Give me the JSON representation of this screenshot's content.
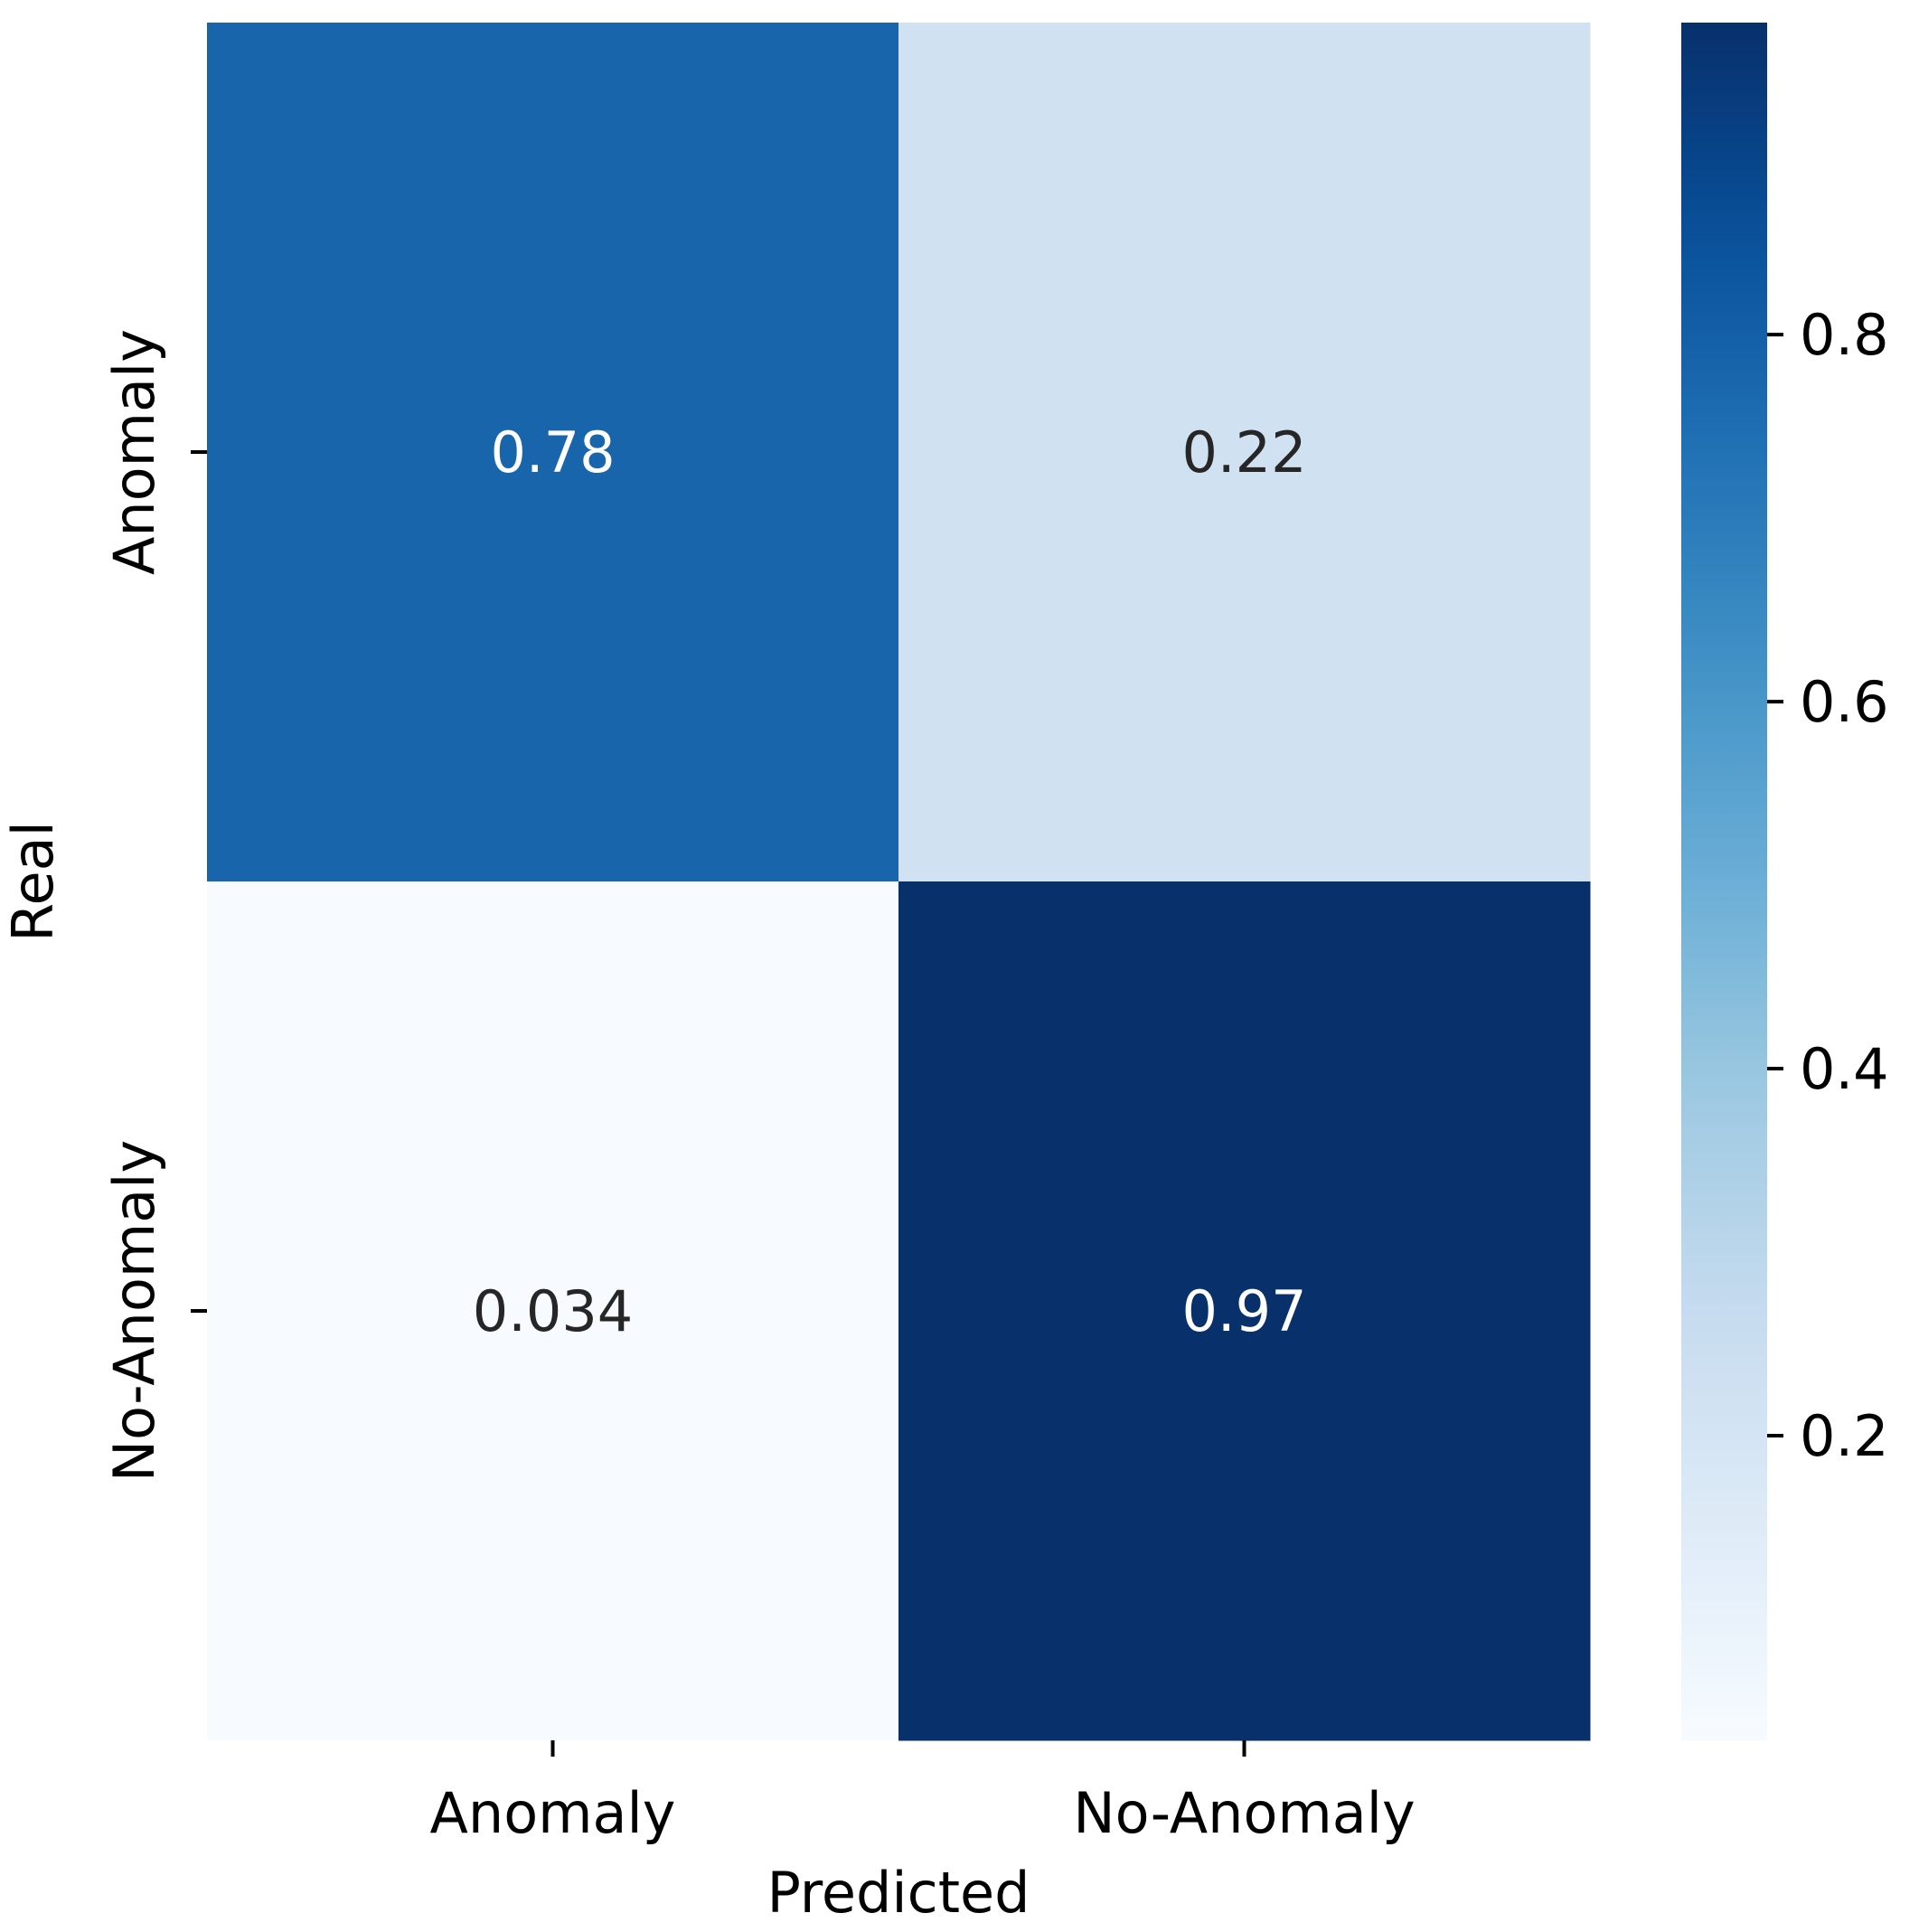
{
  "chart_data": {
    "type": "heatmap",
    "title": "",
    "xlabel": "Predicted",
    "ylabel": "Real",
    "x_categories": [
      "Anomaly",
      "No-Anomaly"
    ],
    "y_categories": [
      "Anomaly",
      "No-Anomaly"
    ],
    "values": [
      [
        0.78,
        0.22
      ],
      [
        0.034,
        0.97
      ]
    ],
    "cell_labels": [
      [
        "0.78",
        "0.22"
      ],
      [
        "0.034",
        "0.97"
      ]
    ],
    "colormap": "Blues",
    "colorbar": {
      "range": [
        0.034,
        0.97
      ],
      "ticks": [
        0.2,
        0.4,
        0.6,
        0.8
      ],
      "tick_labels": [
        "0.2",
        "0.4",
        "0.6",
        "0.8"
      ]
    },
    "colors": {
      "min": "#f7fbff",
      "max": "#08306b",
      "text_dark": "#262626",
      "text_light": "#ffffff"
    }
  }
}
